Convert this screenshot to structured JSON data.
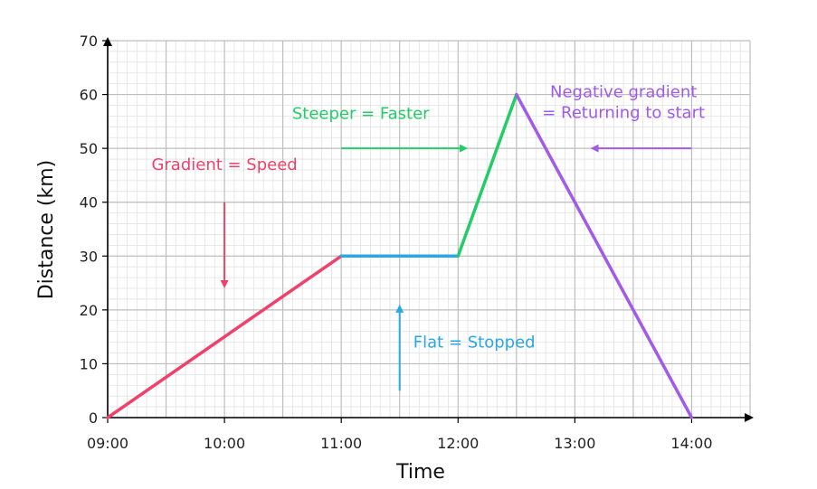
{
  "chart_data": {
    "type": "line",
    "xlabel": "Time",
    "ylabel": "Distance (km)",
    "x_ticks": [
      "09:00",
      "10:00",
      "11:00",
      "12:00",
      "13:00",
      "14:00"
    ],
    "y_ticks": [
      "0",
      "10",
      "20",
      "30",
      "40",
      "50",
      "60",
      "70"
    ],
    "xlim": [
      "09:00",
      "14:30"
    ],
    "ylim": [
      0,
      70
    ],
    "grid": true,
    "segments": [
      {
        "color": "#f0416a",
        "points": [
          [
            "09:00",
            0
          ],
          [
            "11:00",
            30
          ]
        ]
      },
      {
        "color": "#2aa7e6",
        "points": [
          [
            "11:00",
            30
          ],
          [
            "12:00",
            30
          ]
        ]
      },
      {
        "color": "#22cc66",
        "points": [
          [
            "12:00",
            30
          ],
          [
            "12:30",
            60
          ]
        ]
      },
      {
        "color": "#a25ae8",
        "points": [
          [
            "12:30",
            60
          ],
          [
            "14:00",
            0
          ]
        ]
      }
    ],
    "annotations": [
      {
        "lines": [
          "Gradient = Speed"
        ],
        "color": "#f0416a",
        "x": "10:00",
        "y": 46,
        "anchor": "middle"
      },
      {
        "lines": [
          "Steeper = Faster"
        ],
        "color": "#22cc66",
        "x": "11:10",
        "y": 55.5,
        "anchor": "middle"
      },
      {
        "lines": [
          "Flat = Stopped"
        ],
        "color": "#2aa7e6",
        "x": "11:37",
        "y": 13,
        "anchor": "start"
      },
      {
        "lines": [
          "Negative gradient",
          " = Returning to start"
        ],
        "color": "#a25ae8",
        "x": "13:25",
        "y": 59.5,
        "anchor": "middle"
      }
    ],
    "arrows": [
      {
        "color": "#f0416a",
        "from": [
          "10:00",
          40
        ],
        "to": [
          "10:00",
          24
        ]
      },
      {
        "color": "#22cc66",
        "from": [
          "11:00",
          50
        ],
        "to": [
          "12:05",
          50
        ]
      },
      {
        "color": "#2aa7e6",
        "from": [
          "11:30",
          5
        ],
        "to": [
          "11:30",
          21
        ]
      },
      {
        "color": "#a25ae8",
        "from": [
          "14:00",
          50
        ],
        "to": [
          "13:08",
          50
        ]
      }
    ]
  }
}
